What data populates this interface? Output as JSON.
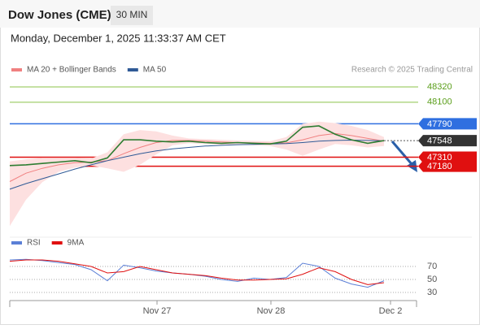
{
  "chart_data": [
    {
      "type": "line",
      "title": "Dow Jones (CME)",
      "interval": "30 MIN",
      "subtitle": "Monday, December 1, 2025 11:33:37 AM CET",
      "source": "Research © 2025 Trading Central",
      "x": [
        0,
        1,
        2,
        3,
        4,
        5,
        6,
        7,
        8,
        9,
        10,
        11,
        12,
        13,
        14,
        15,
        16,
        17,
        18,
        19,
        20,
        21,
        22,
        23
      ],
      "xlim": [
        0,
        24
      ],
      "ylim": [
        46300,
        48460
      ],
      "series": [
        {
          "name": "MA 20 + Bollinger Bands",
          "color": "#f08080",
          "band_color": "#fde0e0",
          "values": [
            46960,
            47080,
            47150,
            47200,
            47230,
            47240,
            47260,
            47360,
            47450,
            47520,
            47550,
            47550,
            47540,
            47530,
            47520,
            47515,
            47510,
            47515,
            47560,
            47620,
            47650,
            47620,
            47580,
            47540
          ],
          "upper": [
            47250,
            47280,
            47300,
            47300,
            47300,
            47290,
            47380,
            47640,
            47700,
            47680,
            47620,
            47580,
            47570,
            47560,
            47550,
            47545,
            47540,
            47600,
            47790,
            47820,
            47800,
            47760,
            47700,
            47600
          ],
          "lower": [
            46320,
            46700,
            46950,
            47100,
            47160,
            47190,
            47150,
            47100,
            47200,
            47350,
            47480,
            47510,
            47500,
            47490,
            47490,
            47480,
            47470,
            47420,
            47330,
            47420,
            47500,
            47480,
            47450,
            47470
          ]
        },
        {
          "name": "MA 50",
          "color": "#2f5a96",
          "values": [
            46850,
            46930,
            47000,
            47070,
            47140,
            47200,
            47260,
            47310,
            47360,
            47400,
            47430,
            47450,
            47470,
            47480,
            47490,
            47495,
            47500,
            47505,
            47520,
            47540,
            47550,
            47555,
            47550,
            47545
          ]
        },
        {
          "color": "#2e7d32",
          "values": [
            47190,
            47200,
            47220,
            47240,
            47260,
            47230,
            47300,
            47560,
            47560,
            47540,
            47530,
            47540,
            47520,
            47510,
            47520,
            47510,
            47500,
            47540,
            47740,
            47760,
            47640,
            47560,
            47510,
            47548
          ]
        }
      ],
      "levels": [
        {
          "value": 48320,
          "color": "#8bc34a",
          "label_style": "text"
        },
        {
          "value": 48100,
          "color": "#8bc34a",
          "label_style": "text"
        },
        {
          "value": 47790,
          "color": "#2f6fe0",
          "label_style": "box"
        },
        {
          "value": 47548,
          "color": "#333333",
          "label_style": "box",
          "dotted": true
        },
        {
          "value": 47310,
          "color": "#e01010",
          "label_style": "box"
        },
        {
          "value": 47180,
          "color": "#e01010",
          "label_style": "box"
        }
      ]
    },
    {
      "type": "line",
      "x": [
        0,
        1,
        2,
        3,
        4,
        5,
        6,
        7,
        8,
        9,
        10,
        11,
        12,
        13,
        14,
        15,
        16,
        17,
        18,
        19,
        20,
        21,
        22,
        23
      ],
      "xlim": [
        0,
        24
      ],
      "ylim": [
        15,
        105
      ],
      "yticks": [
        30,
        50,
        70
      ],
      "xticks": [
        {
          "value": 9.05,
          "label": "Nov 27"
        },
        {
          "value": 16.05,
          "label": "Nov 28"
        },
        {
          "value": 23.4,
          "label": "Dec 2"
        }
      ],
      "series": [
        {
          "name": "RSI",
          "color": "#5b7fd6",
          "values": [
            80,
            81,
            79,
            76,
            73,
            65,
            48,
            72,
            68,
            63,
            60,
            58,
            55,
            50,
            47,
            52,
            50,
            53,
            75,
            70,
            52,
            43,
            38,
            48
          ]
        },
        {
          "name": "9MA",
          "color": "#e01010",
          "values": [
            78,
            80,
            80,
            78,
            74,
            70,
            60,
            62,
            70,
            65,
            60,
            58,
            56,
            52,
            49,
            49,
            50,
            51,
            58,
            68,
            62,
            50,
            42,
            45
          ]
        }
      ]
    }
  ]
}
